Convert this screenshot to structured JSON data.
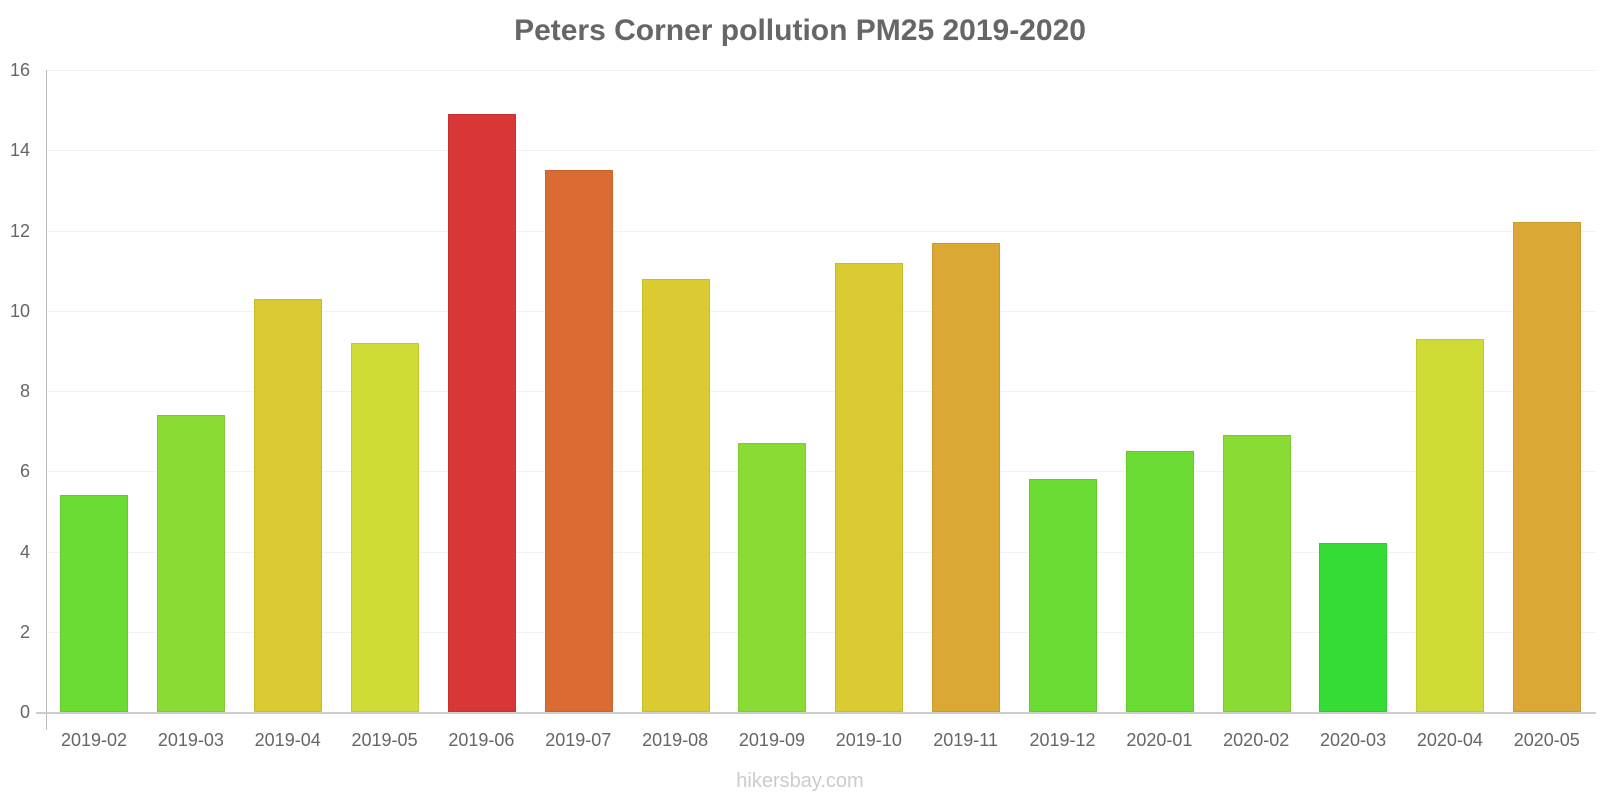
{
  "title": "Peters Corner pollution PM25 2019-2020",
  "footer": "hikersbay.com",
  "chart_data": {
    "type": "bar",
    "title": "Peters Corner pollution PM25 2019-2020",
    "xlabel": "",
    "ylabel": "",
    "ylim": [
      0,
      16
    ],
    "yticks": [
      0,
      2,
      4,
      6,
      8,
      10,
      12,
      14,
      16
    ],
    "grid": true,
    "legend": "none",
    "categories": [
      "2019-02",
      "2019-03",
      "2019-04",
      "2019-05",
      "2019-06",
      "2019-07",
      "2019-08",
      "2019-09",
      "2019-10",
      "2019-11",
      "2019-12",
      "2020-01",
      "2020-02",
      "2020-03",
      "2020-04",
      "2020-05"
    ],
    "values": [
      5.4,
      7.4,
      10.3,
      9.2,
      14.9,
      13.5,
      10.8,
      6.7,
      11.2,
      11.7,
      5.8,
      6.5,
      6.9,
      4.2,
      9.3,
      12.2
    ],
    "colors": [
      "#6cdc35",
      "#8adc35",
      "#dbcb33",
      "#cfdc35",
      "#d93636",
      "#d96b33",
      "#dbcb33",
      "#8adc35",
      "#dbcb33",
      "#dba835",
      "#6cdc35",
      "#6cdc35",
      "#8adc35",
      "#35dc35",
      "#cfdc35",
      "#dba835"
    ]
  }
}
